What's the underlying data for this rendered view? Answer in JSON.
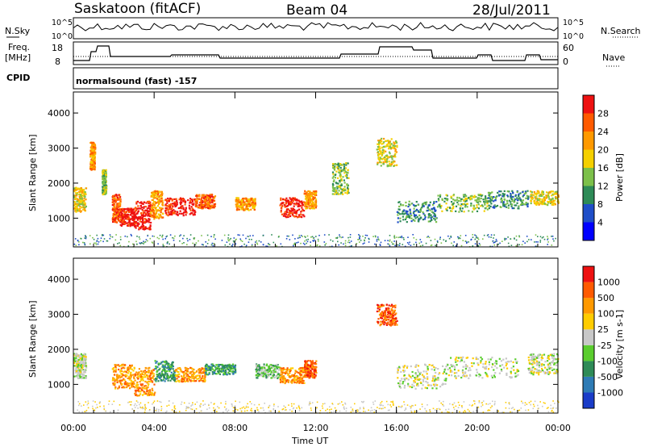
{
  "header": {
    "station": "Saskatoon (fitACF)",
    "beam": "Beam 04",
    "date": "28/Jul/2011",
    "cpid_label": "CPID",
    "cpid_value": "normalsound (fast) -157",
    "nsky_label": "N.Sky",
    "nsearch_label": "N.Search",
    "freq_label_1": "Freq.",
    "freq_label_2": "[MHz]",
    "nave_label": "Nave",
    "nsky_ticks": [
      "10^5",
      "10^0"
    ],
    "nsearch_ticks": [
      "10^5",
      "10^0"
    ],
    "freq_ticks": [
      "18",
      "8"
    ],
    "nave_ticks": [
      "60",
      "0"
    ]
  },
  "chart_data": [
    {
      "type": "heatmap",
      "name": "power",
      "ylabel": "Slant Range [km]",
      "yticks": [
        "4000",
        "3000",
        "2000",
        "1000"
      ],
      "ylim": [
        180,
        4600
      ],
      "xlim": [
        0,
        24
      ],
      "colorbar": {
        "label": "Power [dB]",
        "ticks": [
          "28",
          "24",
          "20",
          "16",
          "12",
          "8",
          "4"
        ],
        "colors": [
          "#0000ff",
          "#1f4ec8",
          "#2e8b57",
          "#7cc04a",
          "#f5d000",
          "#ff9900",
          "#ff5a00",
          "#ee1111"
        ]
      },
      "regions": [
        {
          "t": [
            0.0,
            0.6
          ],
          "r": [
            1200,
            1900
          ],
          "level": 4
        },
        {
          "t": [
            0.8,
            1.05
          ],
          "r": [
            2400,
            3200
          ],
          "level": 5
        },
        {
          "t": [
            1.4,
            1.6
          ],
          "r": [
            1700,
            2400
          ],
          "level": 3
        },
        {
          "t": [
            1.9,
            2.3
          ],
          "r": [
            900,
            1700
          ],
          "level": 6
        },
        {
          "t": [
            2.3,
            3.0
          ],
          "r": [
            800,
            1300
          ],
          "level": 7
        },
        {
          "t": [
            3.0,
            3.8
          ],
          "r": [
            700,
            1500
          ],
          "level": 7
        },
        {
          "t": [
            3.8,
            4.4
          ],
          "r": [
            1000,
            1800
          ],
          "level": 5
        },
        {
          "t": [
            4.5,
            6.0
          ],
          "r": [
            1100,
            1600
          ],
          "level": 7
        },
        {
          "t": [
            6.0,
            7.0
          ],
          "r": [
            1300,
            1700
          ],
          "level": 6
        },
        {
          "t": [
            8.0,
            9.0
          ],
          "r": [
            1250,
            1600
          ],
          "level": 5
        },
        {
          "t": [
            10.2,
            11.4
          ],
          "r": [
            1050,
            1600
          ],
          "level": 7
        },
        {
          "t": [
            11.4,
            12.0
          ],
          "r": [
            1300,
            1800
          ],
          "level": 5
        },
        {
          "t": [
            12.8,
            13.6
          ],
          "r": [
            1700,
            2600
          ],
          "level": 3
        },
        {
          "t": [
            15.0,
            16.0
          ],
          "r": [
            2500,
            3300
          ],
          "level": 4
        },
        {
          "t": [
            16.0,
            18.0
          ],
          "r": [
            900,
            1500
          ],
          "level": 2
        },
        {
          "t": [
            18.0,
            20.5
          ],
          "r": [
            1200,
            1700
          ],
          "level": 3
        },
        {
          "t": [
            20.5,
            22.5
          ],
          "r": [
            1300,
            1800
          ],
          "level": 2
        },
        {
          "t": [
            22.6,
            24.0
          ],
          "r": [
            1400,
            1800
          ],
          "level": 4
        }
      ]
    },
    {
      "type": "heatmap",
      "name": "velocity",
      "ylabel": "Slant Range [km]",
      "yticks": [
        "4000",
        "3000",
        "2000",
        "1000"
      ],
      "ylim": [
        180,
        4600
      ],
      "xlim": [
        0,
        24
      ],
      "xlabel": "Time UT",
      "xticks": [
        "00:00",
        "04:00",
        "08:00",
        "12:00",
        "16:00",
        "20:00",
        "00:00"
      ],
      "colorbar": {
        "label": "Velocity [m s-1]",
        "ticks": [
          "1000",
          "500",
          "100",
          "25",
          "-25",
          "-100",
          "-500",
          "-1000"
        ],
        "colors": [
          "#1a3cc8",
          "#2e7bb5",
          "#2e8b57",
          "#5acd2e",
          "#c8c8c8",
          "#ffcc00",
          "#ff9900",
          "#ff5a00",
          "#ee1111"
        ]
      },
      "regions": [
        {
          "t": [
            0.0,
            0.6
          ],
          "r": [
            1200,
            1900
          ],
          "level": 4
        },
        {
          "t": [
            1.9,
            3.0
          ],
          "r": [
            900,
            1600
          ],
          "level": 6
        },
        {
          "t": [
            3.0,
            4.0
          ],
          "r": [
            700,
            1500
          ],
          "level": 6
        },
        {
          "t": [
            4.0,
            5.0
          ],
          "r": [
            1100,
            1700
          ],
          "level": 2
        },
        {
          "t": [
            5.0,
            6.5
          ],
          "r": [
            1100,
            1500
          ],
          "level": 6
        },
        {
          "t": [
            6.5,
            8.0
          ],
          "r": [
            1300,
            1600
          ],
          "level": 2
        },
        {
          "t": [
            9.0,
            10.2
          ],
          "r": [
            1200,
            1600
          ],
          "level": 3
        },
        {
          "t": [
            10.2,
            11.4
          ],
          "r": [
            1050,
            1500
          ],
          "level": 6
        },
        {
          "t": [
            11.4,
            12.0
          ],
          "r": [
            1200,
            1700
          ],
          "level": 7
        },
        {
          "t": [
            15.0,
            16.0
          ],
          "r": [
            2700,
            3300
          ],
          "level": 7
        },
        {
          "t": [
            16.0,
            18.5
          ],
          "r": [
            900,
            1600
          ],
          "level": 4
        },
        {
          "t": [
            18.5,
            22.0
          ],
          "r": [
            1200,
            1800
          ],
          "level": 4
        },
        {
          "t": [
            22.5,
            24.0
          ],
          "r": [
            1300,
            1900
          ],
          "level": 4
        }
      ]
    }
  ]
}
